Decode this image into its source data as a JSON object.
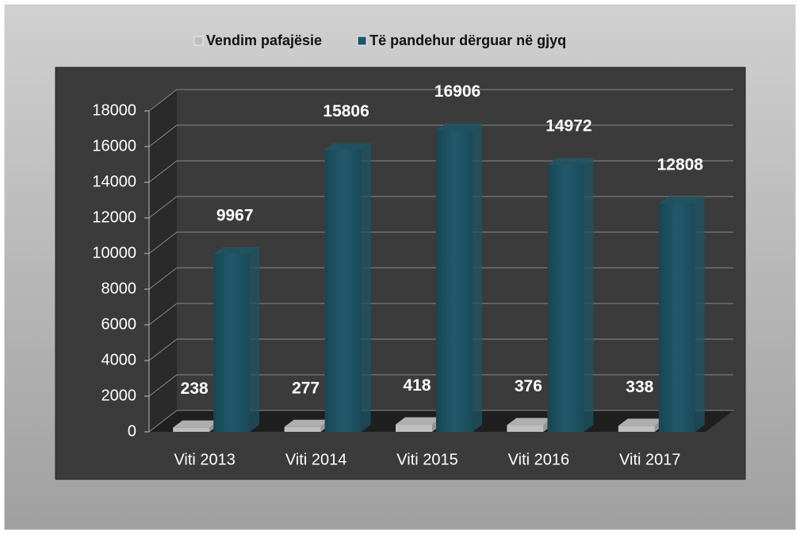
{
  "chart_data": {
    "type": "bar",
    "categories": [
      "Viti 2013",
      "Viti 2014",
      "Viti 2015",
      "Viti 2016",
      "Viti 2017"
    ],
    "series": [
      {
        "name": "Vendim pafajësie",
        "color": "#bfbfbf",
        "values": [
          238,
          277,
          418,
          376,
          338
        ]
      },
      {
        "name": "Të pandehur dërguar në gjyq",
        "color": "#1f5566",
        "values": [
          9967,
          15806,
          16906,
          14972,
          12808
        ]
      }
    ],
    "ylim": [
      0,
      18000
    ],
    "yticks": [
      0,
      2000,
      4000,
      6000,
      8000,
      10000,
      12000,
      14000,
      16000,
      18000
    ],
    "grid": true,
    "legend": "top"
  }
}
